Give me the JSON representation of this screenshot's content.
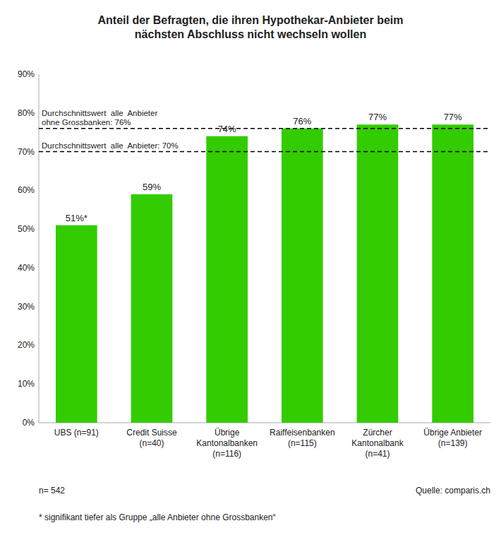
{
  "chart_data": {
    "type": "bar",
    "title": "Anteil der Befragten, die ihren Hypothekar-Anbieter beim\nnächsten Abschluss nicht wechseln wollen",
    "categories": [
      "UBS (n=91)",
      "Credit Suisse\n(n=40)",
      "Übrige\nKantonalbanken\n(n=116)",
      "Raiffeisenbanken\n(n=115)",
      "Zürcher\nKantonalbank\n(n=41)",
      "Übrige Anbieter\n(n=139)"
    ],
    "values": [
      51,
      59,
      74,
      76,
      77,
      77
    ],
    "value_labels": [
      "51%*",
      "59%",
      "74%",
      "76%",
      "77%",
      "77%"
    ],
    "data_labels": true,
    "color": "#33cc00",
    "reference_lines": [
      {
        "value": 70,
        "label": "Durchschnittswert  alle  Anbieter: 70%"
      },
      {
        "value": 76,
        "label": "Durchschnittswert  alle  Anbieter\nohne Grossbanken: 76%"
      }
    ],
    "ylim": [
      0,
      90
    ],
    "yticks": [
      {
        "value": 0,
        "label": "0%"
      },
      {
        "value": 10,
        "label": "10%"
      },
      {
        "value": 20,
        "label": "20%"
      },
      {
        "value": 30,
        "label": "30%"
      },
      {
        "value": 40,
        "label": "40%"
      },
      {
        "value": 50,
        "label": "50%"
      },
      {
        "value": 60,
        "label": "60%"
      },
      {
        "value": 70,
        "label": "70%"
      },
      {
        "value": 80,
        "label": "80%"
      },
      {
        "value": 90,
        "label": "90%"
      }
    ],
    "grid": false,
    "footer": [
      "n= 542",
      "Quelle: comparis.ch"
    ],
    "footnote": "* signifikant tiefer als Gruppe „alle Anbieter ohne Grossbanken“"
  }
}
